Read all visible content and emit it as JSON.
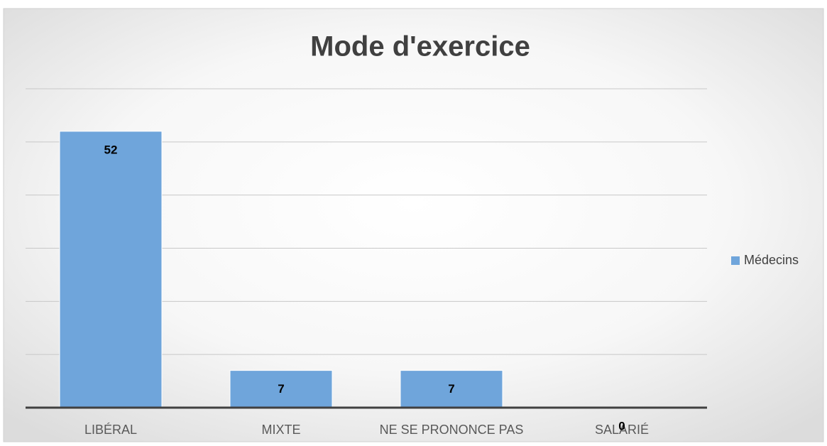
{
  "chart_data": {
    "type": "bar",
    "title": "Mode d'exercice",
    "categories": [
      "LIBÉRAL",
      "MIXTE",
      "NE SE PRONONCE PAS",
      "SALARIÉ"
    ],
    "series": [
      {
        "name": "Médecins",
        "color": "#6fa5db",
        "values": [
          52,
          7,
          7,
          0
        ]
      }
    ],
    "ylim": [
      0,
      60
    ],
    "yticks": [
      0,
      10,
      20,
      30,
      40,
      50,
      60
    ],
    "grid": true,
    "legend": "right"
  }
}
